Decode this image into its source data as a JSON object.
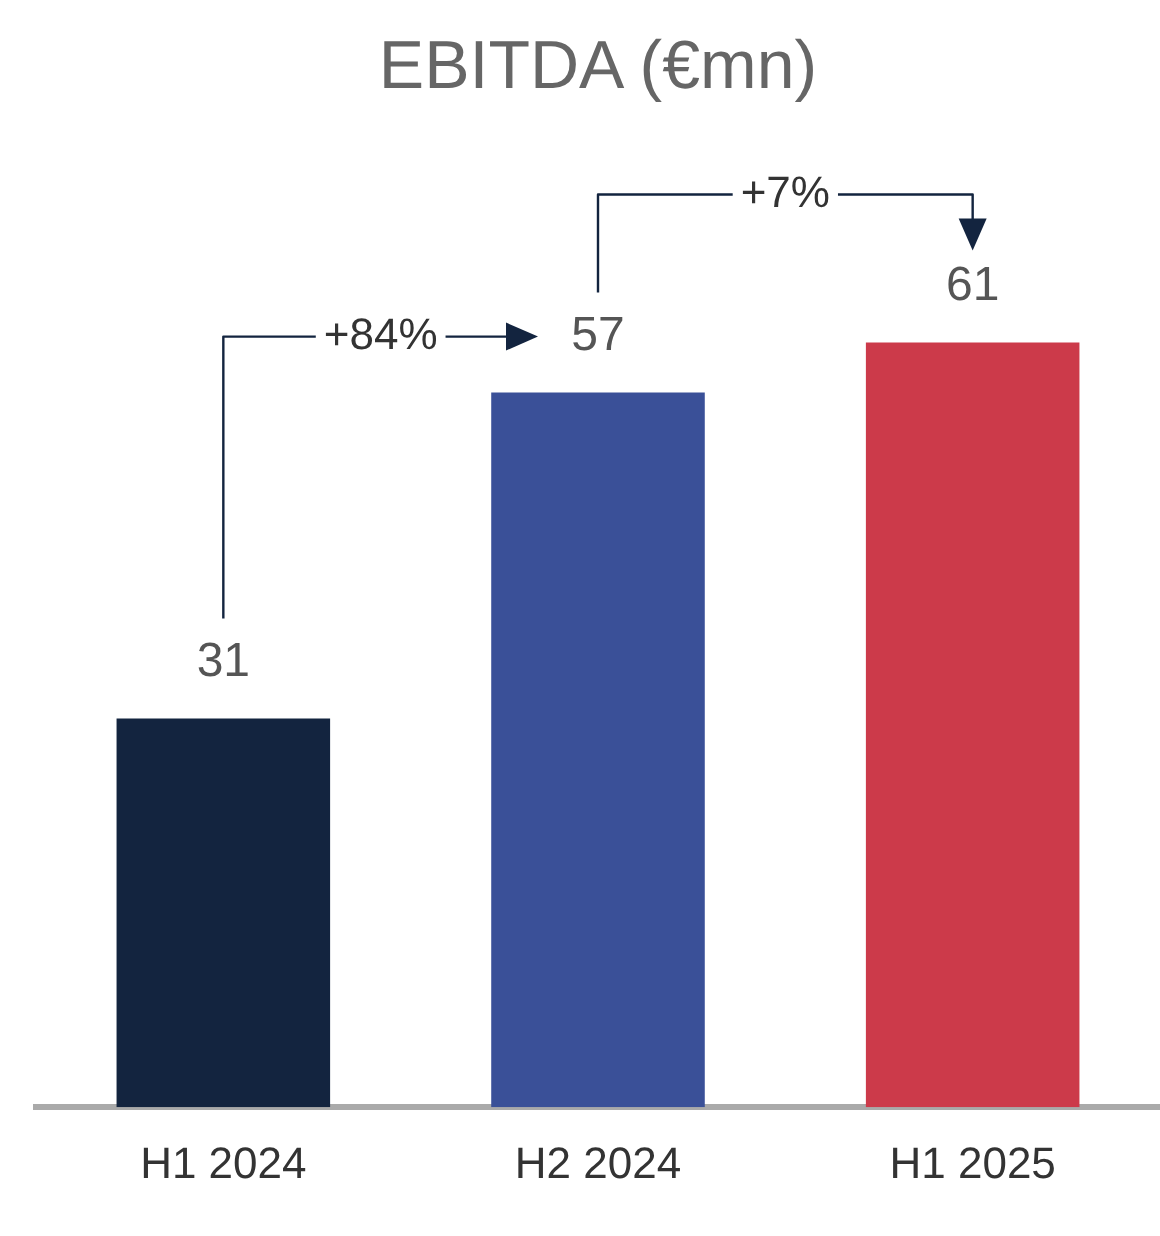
{
  "chart_data": {
    "type": "bar",
    "title": "EBITDA (€mn)",
    "categories": [
      "H1 2024",
      "H2 2024",
      "H1 2025"
    ],
    "values": [
      31,
      57,
      61
    ],
    "colors": [
      "#13243f",
      "#3a5098",
      "#cc3a4a"
    ],
    "data_labels": true,
    "grid": false,
    "legend": false,
    "tick_labels": "x",
    "annotations": [
      "+84%",
      "+7%"
    ]
  }
}
